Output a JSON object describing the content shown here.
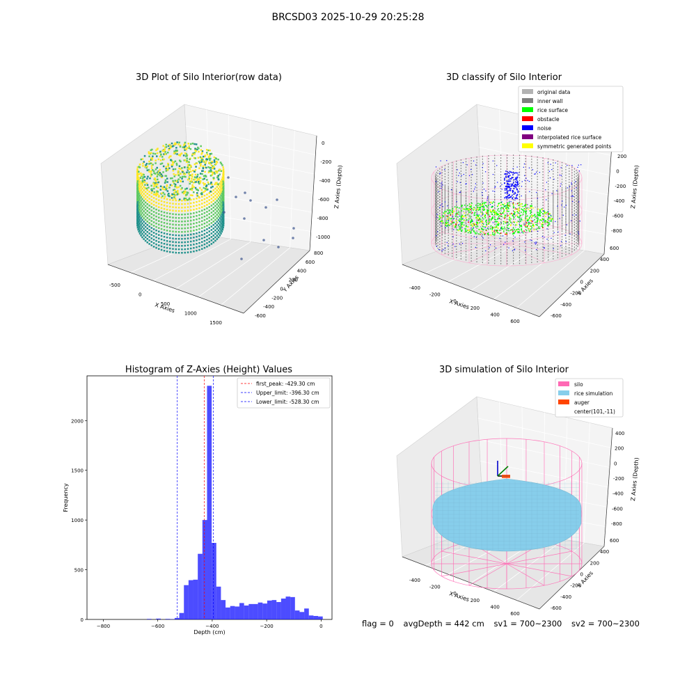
{
  "figure": {
    "suptitle": "BRCSD03 2025-10-29 20:25:28",
    "footer": {
      "flag": "flag = 0",
      "avg_depth": "avgDepth = 442 cm",
      "sv1": "sv1 = 700~2300",
      "sv2": "sv2 = 700~2300"
    }
  },
  "panels": {
    "raw": {
      "title": "3D Plot of Silo Interior(row data)",
      "xlabel": "X Axies",
      "ylabel": "Y Axies",
      "zlabel": "Z Axies (Depth)",
      "xticks": [
        "-500",
        "0",
        "500",
        "1000",
        "1500"
      ],
      "yticks": [
        "-600",
        "-400",
        "-200",
        "0",
        "200",
        "400",
        "600",
        "800"
      ],
      "zticks": [
        "0",
        "-200",
        "-400",
        "-600",
        "-800",
        "-1000"
      ],
      "colors": {
        "high": "#fde725",
        "mid": "#5ec962",
        "low": "#21918c",
        "outlier": "#3b528b"
      }
    },
    "classify": {
      "title": "3D classify of Silo Interior",
      "xlabel": "X Axies",
      "ylabel": "Y Axies",
      "zlabel": "Z Axies (Depth)",
      "xticks": [
        "-400",
        "-200",
        "0",
        "200",
        "400",
        "600"
      ],
      "yticks": [
        "-600",
        "-400",
        "-200",
        "0",
        "200",
        "400",
        "600"
      ],
      "zticks": [
        "200",
        "0",
        "-200",
        "-400",
        "-600",
        "-800"
      ],
      "legend": [
        {
          "label": "original data",
          "color": "#b3b3b3"
        },
        {
          "label": "inner wall",
          "color": "#808080"
        },
        {
          "label": "rice surface",
          "color": "#00ff00"
        },
        {
          "label": "obstacle",
          "color": "#ff0000"
        },
        {
          "label": "noise",
          "color": "#0000ff"
        },
        {
          "label": "interpolated rice surface",
          "color": "#800080"
        },
        {
          "label": "symmetric generated points",
          "color": "#ffff00"
        }
      ],
      "silo_color": "#ff9ec8"
    },
    "simulation": {
      "title": "3D simulation of Silo Interior",
      "xlabel": "X Axies",
      "ylabel": "Y Axies",
      "zlabel": "Z Axies (Depth)",
      "xticks": [
        "-400",
        "-200",
        "0",
        "200",
        "400",
        "600"
      ],
      "yticks": [
        "-600",
        "-400",
        "-200",
        "0",
        "200",
        "400",
        "600"
      ],
      "zticks": [
        "400",
        "200",
        "0",
        "-200",
        "-400",
        "-600",
        "-800"
      ],
      "legend": [
        {
          "label": "silo",
          "color": "#ff69b4"
        },
        {
          "label": "rice simulation",
          "color": "#87ceeb"
        },
        {
          "label": "auger",
          "color": "#ff4500"
        },
        {
          "label": "center(101,-11)",
          "color": "none"
        }
      ]
    }
  },
  "chart_data": [
    {
      "type": "histogram",
      "title": "Histogram of Z-Axies (Height) Values",
      "xlabel": "Depth (cm)",
      "ylabel": "Frequency",
      "xlim": [
        -860,
        40
      ],
      "ylim": [
        0,
        2450
      ],
      "xticks": [
        -800,
        -600,
        -400,
        -200,
        0
      ],
      "yticks": [
        0,
        500,
        1000,
        1500,
        2000
      ],
      "bin_width": 17,
      "bar_color": "#0000ff",
      "bins": [
        {
          "x": -640,
          "count": 5
        },
        {
          "x": -606,
          "count": 8
        },
        {
          "x": -572,
          "count": 5
        },
        {
          "x": -555,
          "count": 3
        },
        {
          "x": -538,
          "count": 15
        },
        {
          "x": -521,
          "count": 65
        },
        {
          "x": -504,
          "count": 345
        },
        {
          "x": -487,
          "count": 395
        },
        {
          "x": -470,
          "count": 400
        },
        {
          "x": -453,
          "count": 660
        },
        {
          "x": -436,
          "count": 1000
        },
        {
          "x": -419,
          "count": 2350
        },
        {
          "x": -402,
          "count": 770
        },
        {
          "x": -385,
          "count": 330
        },
        {
          "x": -368,
          "count": 195
        },
        {
          "x": -351,
          "count": 120
        },
        {
          "x": -334,
          "count": 135
        },
        {
          "x": -317,
          "count": 130
        },
        {
          "x": -300,
          "count": 165
        },
        {
          "x": -283,
          "count": 140
        },
        {
          "x": -266,
          "count": 155
        },
        {
          "x": -249,
          "count": 155
        },
        {
          "x": -232,
          "count": 170
        },
        {
          "x": -215,
          "count": 160
        },
        {
          "x": -198,
          "count": 190
        },
        {
          "x": -181,
          "count": 195
        },
        {
          "x": -164,
          "count": 175
        },
        {
          "x": -147,
          "count": 210
        },
        {
          "x": -130,
          "count": 230
        },
        {
          "x": -113,
          "count": 225
        },
        {
          "x": -96,
          "count": 90
        },
        {
          "x": -79,
          "count": 75
        },
        {
          "x": -62,
          "count": 110
        },
        {
          "x": -45,
          "count": 40
        },
        {
          "x": -28,
          "count": 35
        },
        {
          "x": -11,
          "count": 30
        }
      ],
      "vlines": [
        {
          "label": "first_peak: -429.30 cm",
          "x": -429.3,
          "color": "#ff0000"
        },
        {
          "label": "Upper_limit: -396.30 cm",
          "x": -396.3,
          "color": "#0000ff"
        },
        {
          "label": "Lower_limit: -528.30 cm",
          "x": -528.3,
          "color": "#0000ff"
        }
      ],
      "legend_position": "upper right"
    }
  ]
}
